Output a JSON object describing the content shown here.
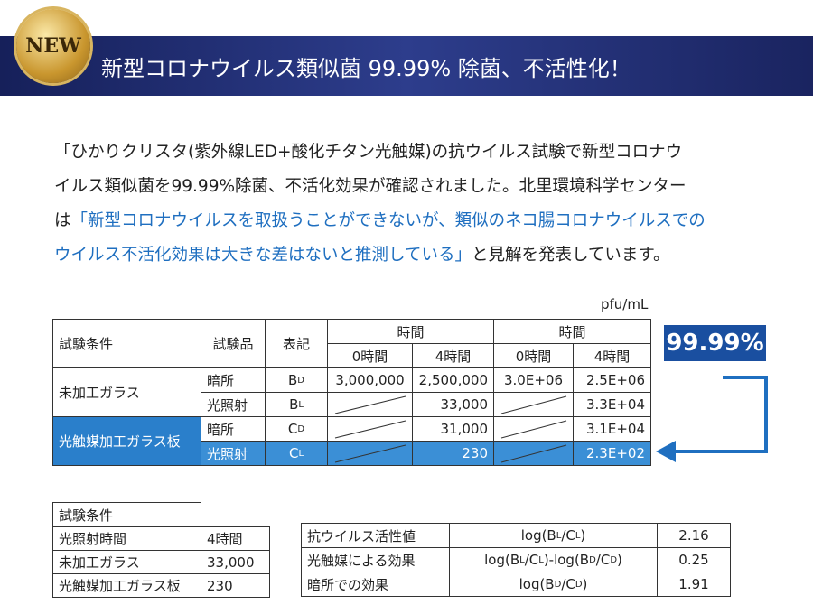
{
  "header": {
    "badge": "NEW",
    "title": "新型コロナウイルス類似菌 99.99% 除菌、不活性化！"
  },
  "paragraph": {
    "lines": [
      [
        "「ひかりクリスタ(紫外線LED+酸化チタン光触媒)の抗ウイルス試験で新型コロナウ"
      ],
      [
        "イルス類似菌を99.99%除菌、不活化効果が確認されました。北里環境科学センター"
      ],
      [
        "は",
        "「新型コロナウイルスを取扱うことができないが、類似のネコ腸コロナウイルスでの"
      ],
      [
        "ウイルス不活化効果は大きな差はないと推測している」",
        "と見解を発表しています。"
      ]
    ]
  },
  "main_table": {
    "unit": "pfu/mL",
    "headers": {
      "condition": "試験条件",
      "item": "試験品",
      "mark": "表記",
      "time_groups": [
        "時間",
        "時間"
      ],
      "times": [
        "0時間",
        "4時間",
        "0時間",
        "4時間"
      ]
    },
    "groups": [
      {
        "condition": "未加工ガラス",
        "rows": [
          {
            "item": "暗所",
            "mark": [
              "B",
              "D"
            ],
            "values": [
              "3,000,000",
              "2,500,000",
              "3.0E+06",
              "2.5E+06"
            ]
          },
          {
            "item": "光照射",
            "mark": [
              "B",
              "L"
            ],
            "values": [
              null,
              "33,000",
              null,
              "3.3E+04"
            ]
          }
        ]
      },
      {
        "condition": "光触媒加工ガラス板",
        "rows": [
          {
            "item": "暗所",
            "mark": [
              "C",
              "D"
            ],
            "values": [
              null,
              "31,000",
              null,
              "3.1E+04"
            ]
          },
          {
            "item": "光照射",
            "mark": [
              "C",
              "L"
            ],
            "values": [
              null,
              "230",
              null,
              "2.3E+02"
            ]
          }
        ]
      }
    ]
  },
  "result_badge": "99.99%",
  "conditions_table": {
    "title": "試験条件",
    "rows": [
      [
        "光照射時間",
        "4時間"
      ],
      [
        "未加工ガラス",
        "33,000"
      ],
      [
        "光触媒加工ガラス板",
        "230"
      ]
    ]
  },
  "effect_table": {
    "rows": [
      {
        "label": "抗ウイルス活性値",
        "formula": [
          "log(B",
          "L",
          "/C",
          "L",
          ")"
        ],
        "value": "2.16"
      },
      {
        "label": "光触媒による効果",
        "formula": [
          "log(B",
          "L",
          "/C",
          "L",
          ")-log(B",
          "D",
          "/C",
          "D",
          ")"
        ],
        "value": "0.25"
      },
      {
        "label": "暗所での効果",
        "formula": [
          "log(B",
          "D",
          "/C",
          "D",
          ")"
        ],
        "value": "1.91"
      }
    ]
  }
}
